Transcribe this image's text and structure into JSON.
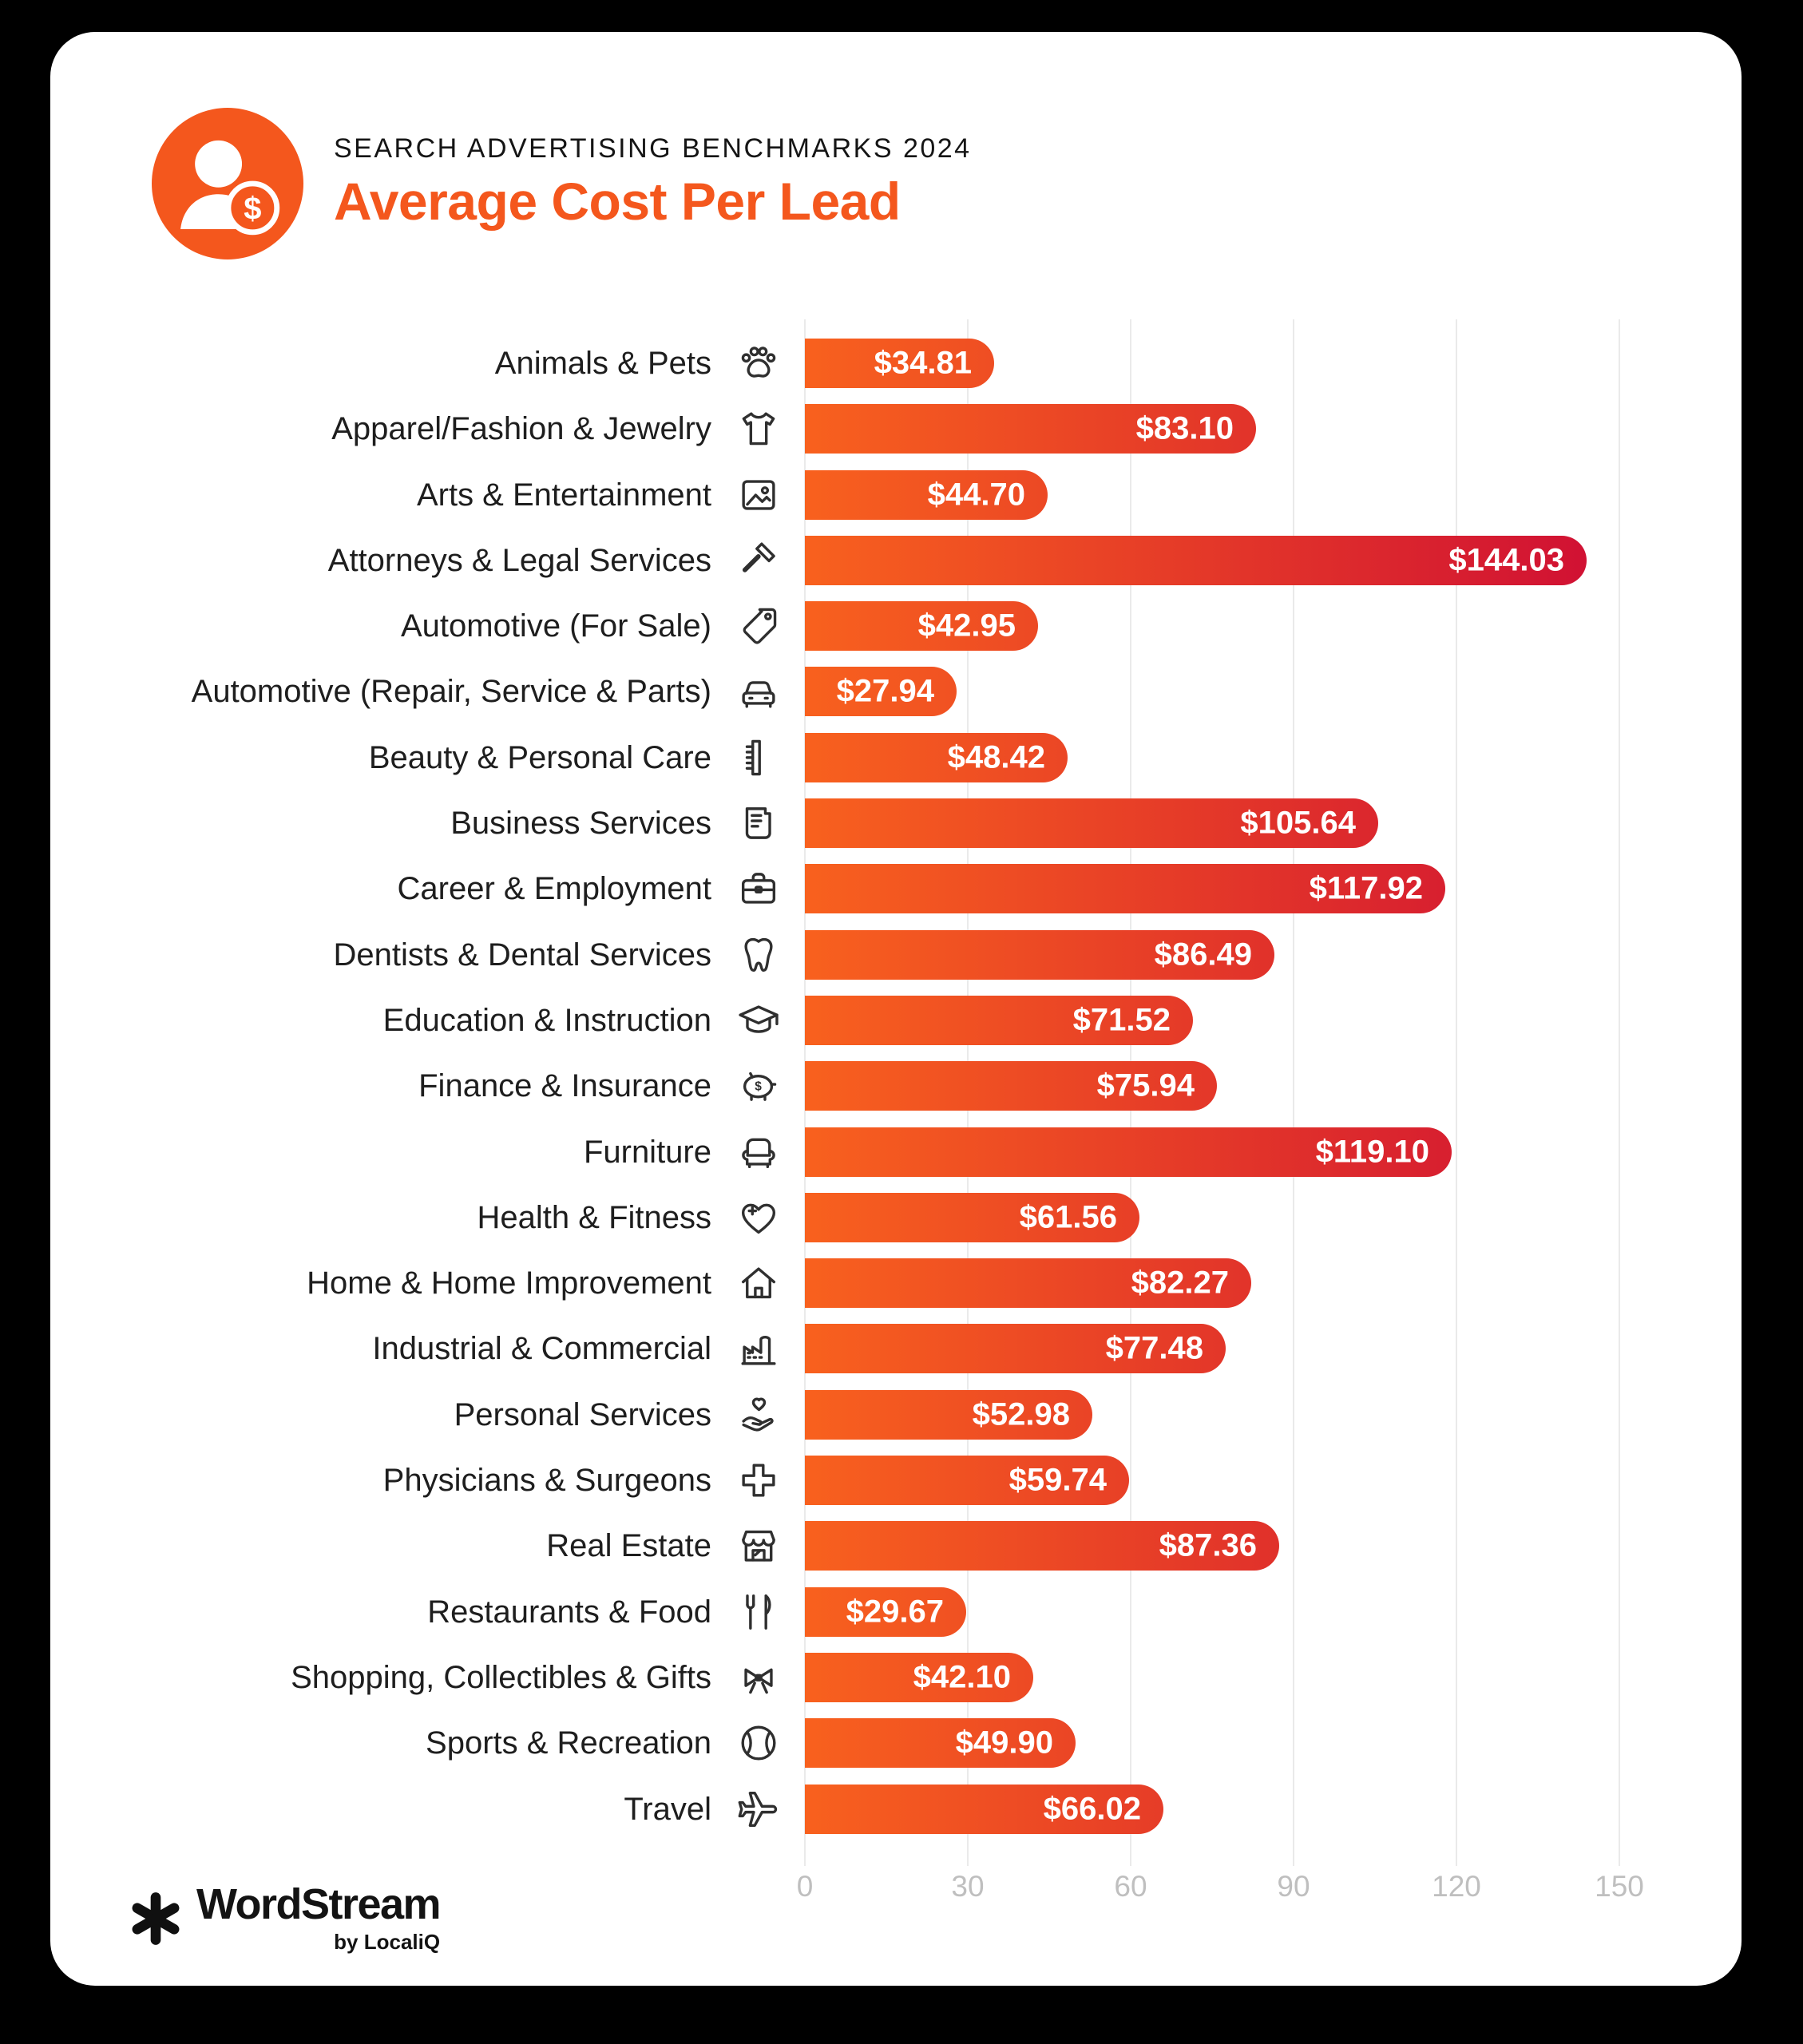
{
  "header": {
    "eyebrow": "SEARCH ADVERTISING BENCHMARKS 2024",
    "title": "Average Cost Per Lead",
    "badge_icon": "person-dollar-icon"
  },
  "chart_data": {
    "type": "bar",
    "orientation": "horizontal",
    "title": "Average Cost Per Lead",
    "xlabel": "",
    "ylabel": "",
    "xlim": [
      0,
      150
    ],
    "x_ticks": [
      0,
      30,
      60,
      90,
      120,
      150
    ],
    "grid": "vertical",
    "legend": "none",
    "categories": [
      "Animals & Pets",
      "Apparel/Fashion & Jewelry",
      "Arts & Entertainment",
      "Attorneys & Legal Services",
      "Automotive (For Sale)",
      "Automotive (Repair, Service & Parts)",
      "Beauty & Personal Care",
      "Business Services",
      "Career & Employment",
      "Dentists & Dental Services",
      "Education & Instruction",
      "Finance & Insurance",
      "Furniture",
      "Health & Fitness",
      "Home & Home Improvement",
      "Industrial & Commercial",
      "Personal Services",
      "Physicians & Surgeons",
      "Real Estate",
      "Restaurants & Food",
      "Shopping, Collectibles & Gifts",
      "Sports & Recreation",
      "Travel"
    ],
    "values": [
      34.81,
      83.1,
      44.7,
      144.03,
      42.95,
      27.94,
      48.42,
      105.64,
      117.92,
      86.49,
      71.52,
      75.94,
      119.1,
      61.56,
      82.27,
      77.48,
      52.98,
      59.74,
      87.36,
      29.67,
      42.1,
      49.9,
      66.02
    ],
    "value_labels": [
      "$34.81",
      "$83.10",
      "$44.70",
      "$144.03",
      "$42.95",
      "$27.94",
      "$48.42",
      "$105.64",
      "$117.92",
      "$86.49",
      "$71.52",
      "$75.94",
      "$119.10",
      "$61.56",
      "$82.27",
      "$77.48",
      "$52.98",
      "$59.74",
      "$87.36",
      "$29.67",
      "$42.10",
      "$49.90",
      "$66.02"
    ],
    "icons": [
      "paw",
      "tshirt",
      "picture",
      "gavel",
      "price-tag",
      "car",
      "comb",
      "document",
      "briefcase",
      "tooth",
      "graduation-cap",
      "piggy-bank",
      "armchair",
      "heart-plus",
      "house",
      "factory",
      "hand-heart",
      "medical-cross",
      "storefront",
      "fork-knife",
      "gift-bow",
      "ball",
      "airplane"
    ],
    "bar_gradient": [
      "#F8611E",
      "#CF0E34"
    ]
  },
  "footer": {
    "brand": "WordStream",
    "byline": "by LocaliQ",
    "logo_icon": "asterisk-scribble-icon"
  },
  "colors": {
    "background": "#000000",
    "card": "#FFFFFF",
    "accent_orange": "#F4571D",
    "value_text": "#FFFFFF",
    "label_text": "#1E1E1E",
    "axis_text": "#BFBFBF",
    "gridline": "#EAEAEA"
  }
}
